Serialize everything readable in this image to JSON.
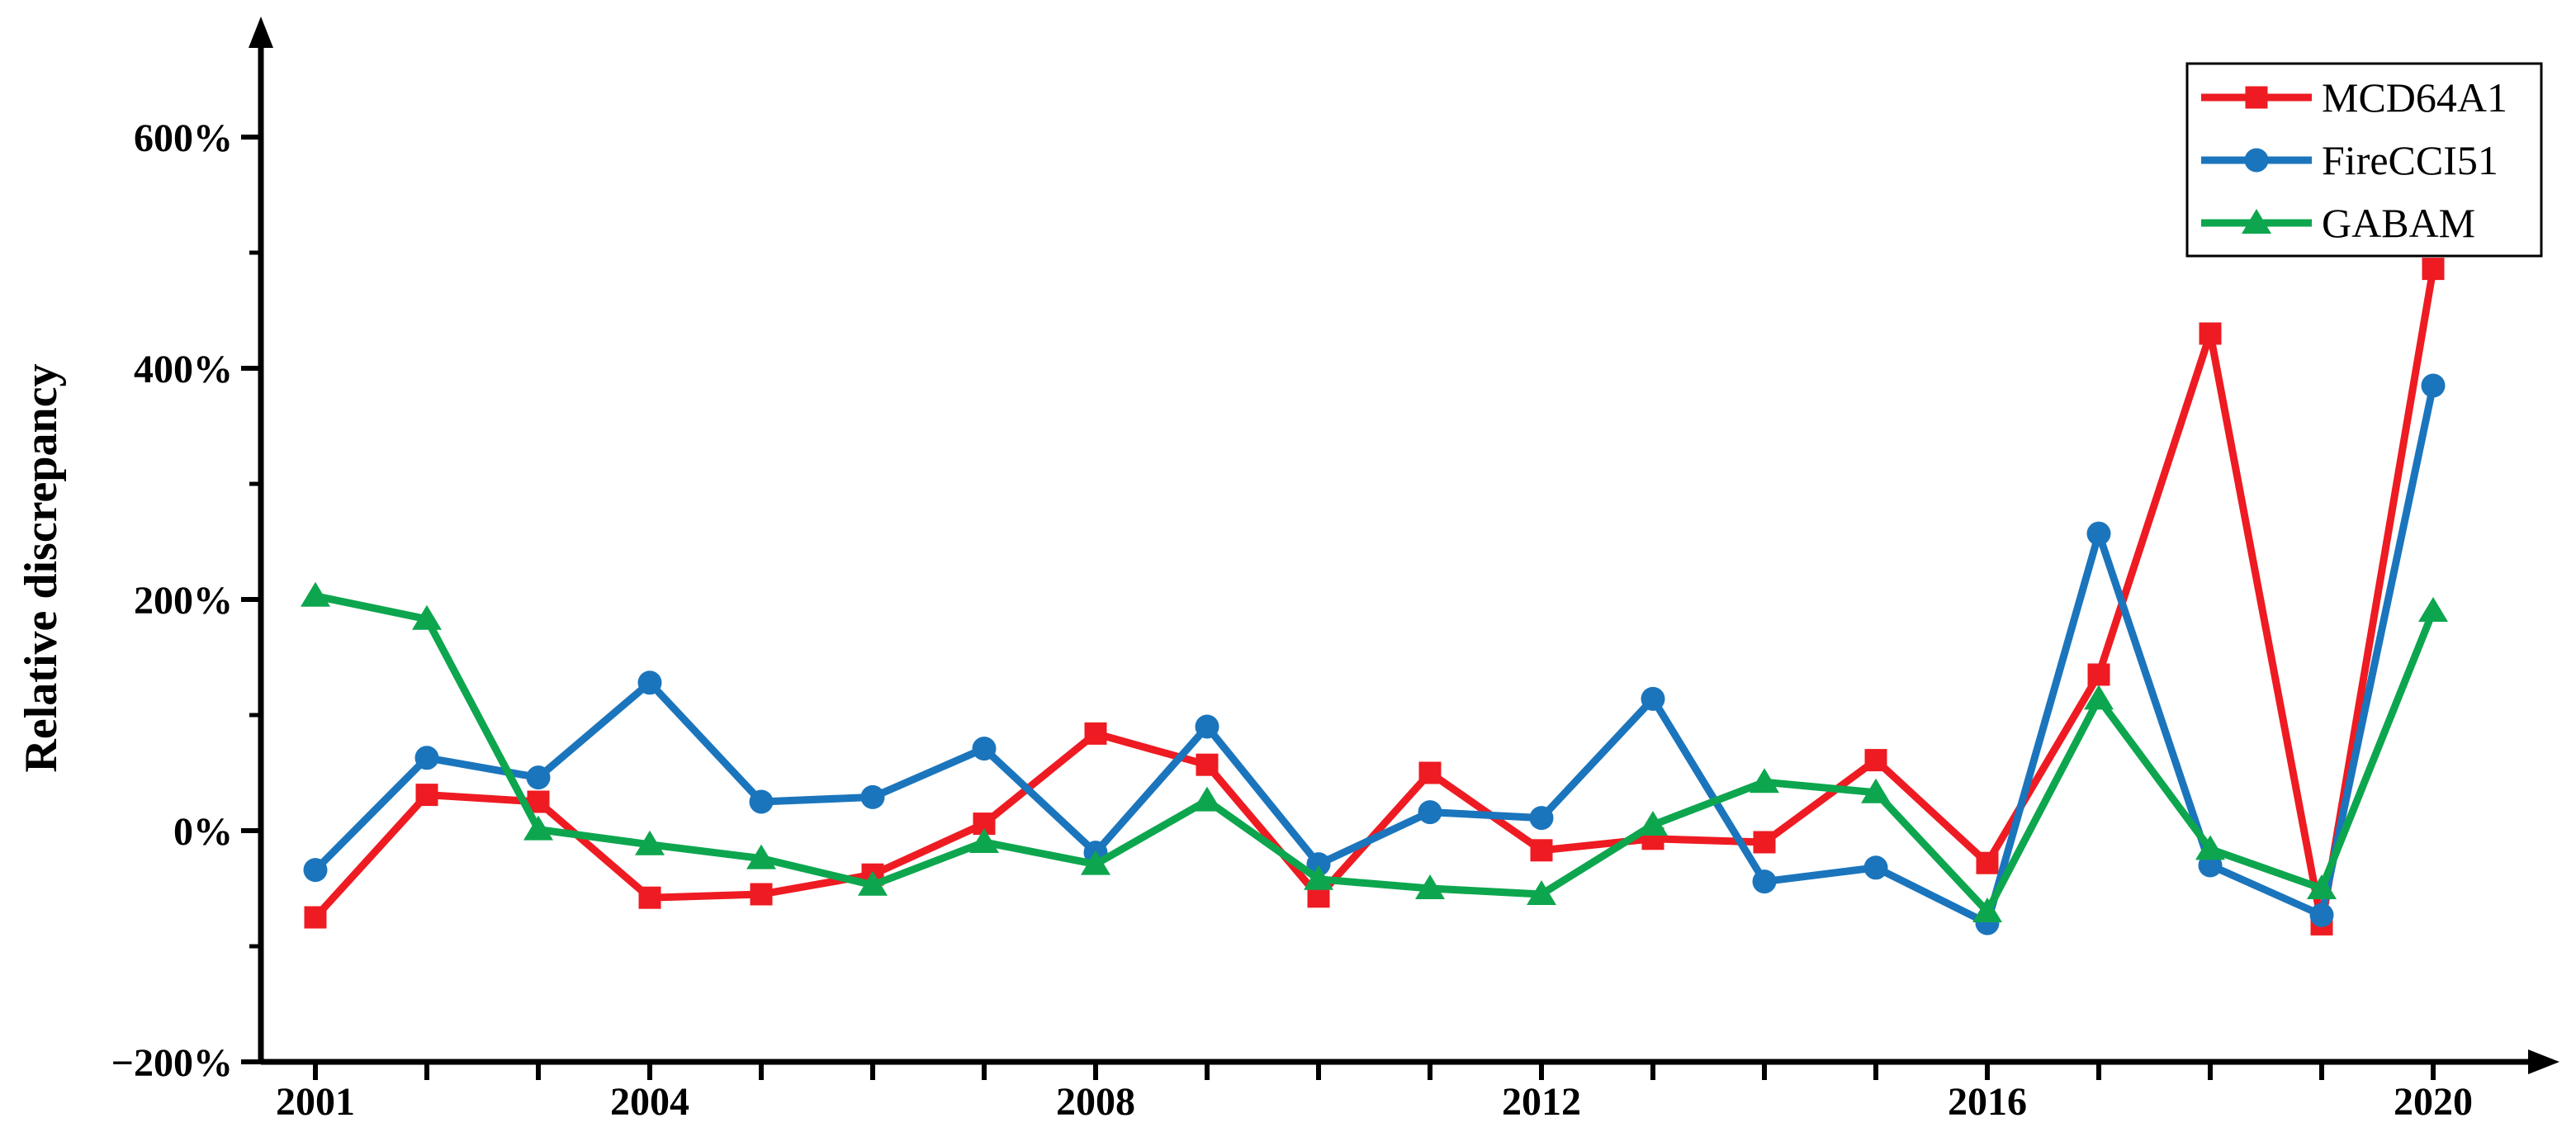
{
  "chart_data": {
    "type": "line",
    "title": "",
    "xlabel": "",
    "ylabel": "Relative discrepancy",
    "grid": false,
    "legend_position": "top-right",
    "ylim": [
      -200,
      700
    ],
    "x": [
      2001,
      2002,
      2003,
      2004,
      2005,
      2006,
      2007,
      2008,
      2009,
      2010,
      2011,
      2012,
      2013,
      2014,
      2015,
      2016,
      2017,
      2018,
      2019,
      2020
    ],
    "x_labeled_years": [
      2001,
      2004,
      2008,
      2012,
      2016,
      2020
    ],
    "y_axis": {
      "unit": "%",
      "major": [
        {
          "value": 600,
          "label": "600%"
        },
        {
          "value": 400,
          "label": "400%"
        },
        {
          "value": 200,
          "label": "200%"
        },
        {
          "value": 0,
          "label": "0%"
        },
        {
          "value": -200,
          "label": "−200%"
        }
      ],
      "minor": [
        500,
        300,
        100,
        -100
      ]
    },
    "series": [
      {
        "name": "MCD64A1",
        "color": "#ee1b22",
        "marker": "square",
        "values": [
          -75,
          31,
          25,
          -58,
          -55,
          -38,
          6,
          84,
          57,
          -57,
          50,
          -17,
          -7,
          -10,
          61,
          -28,
          135,
          430,
          -81,
          486
        ]
      },
      {
        "name": "FireCCI51",
        "color": "#1b75bc",
        "marker": "circle",
        "values": [
          -34,
          63,
          46,
          128,
          25,
          29,
          71,
          -19,
          90,
          -29,
          16,
          11,
          114,
          -44,
          -32,
          -80,
          257,
          -30,
          -73,
          385
        ]
      },
      {
        "name": "GABAM",
        "color": "#0da64e",
        "marker": "triangle",
        "values": [
          203,
          183,
          1,
          -12,
          -24,
          -47,
          -10,
          -29,
          26,
          -42,
          -50,
          -55,
          5,
          42,
          33,
          -70,
          114,
          -16,
          -50,
          190
        ]
      }
    ]
  }
}
